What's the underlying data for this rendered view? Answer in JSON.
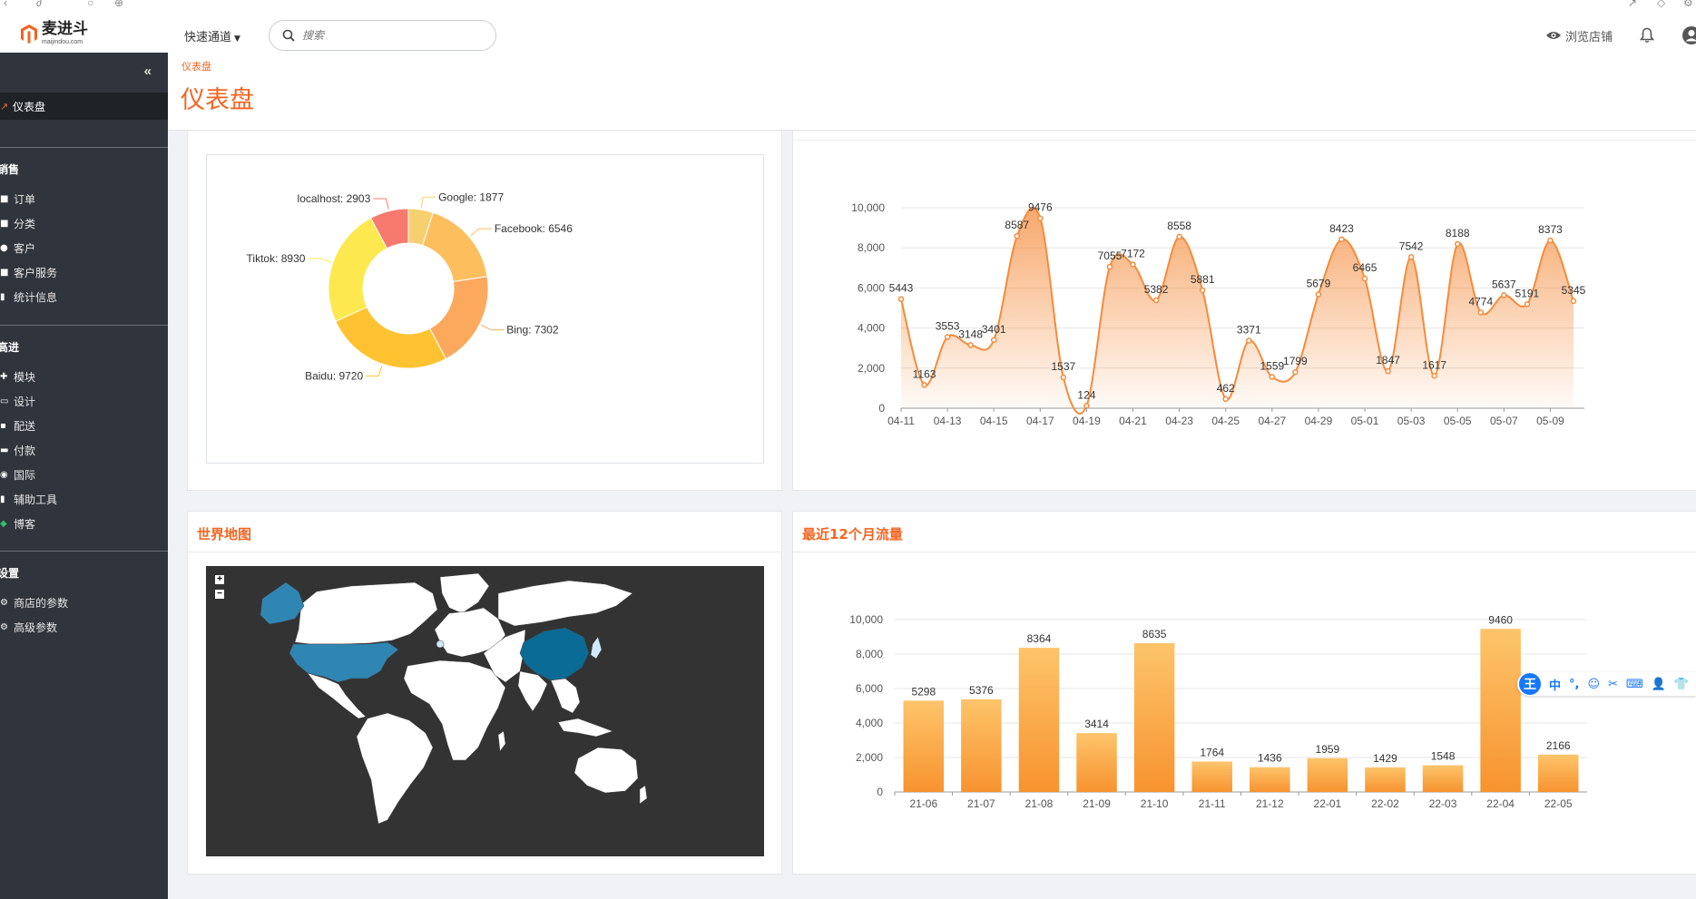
{
  "header": {
    "logo_title": "麦进斗",
    "logo_sub": "maijindou.com",
    "quick_nav": "快速通道",
    "search_placeholder": "搜索",
    "view_store": "浏览店铺"
  },
  "sidebar": {
    "active_item": "仪表盘",
    "sections": [
      {
        "title": "销售",
        "items": [
          "订单",
          "分类",
          "客户",
          "客户服务",
          "统计信息"
        ]
      },
      {
        "title": "高进",
        "items": [
          "模块",
          "设计",
          "配送",
          "付款",
          "国际",
          "辅助工具",
          "博客"
        ]
      },
      {
        "title": "设置",
        "items": [
          "商店的参数",
          "高级参数"
        ]
      }
    ]
  },
  "page": {
    "breadcrumb": "仪表盘",
    "title": "仪表盘"
  },
  "panels": {
    "world_map_title": "世界地图",
    "traffic_title": "最近12个月流量"
  },
  "ime": {
    "logo": "王",
    "items": [
      "中",
      "°,",
      "☺",
      "✂",
      "⌨",
      "👤",
      "👕"
    ]
  },
  "chart_data": [
    {
      "type": "pie",
      "labels": [
        "Google",
        "Facebook",
        "Bing",
        "Baidu",
        "Tiktok",
        "localhost"
      ],
      "values": [
        1877,
        6546,
        7302,
        9720,
        8930,
        2903
      ],
      "slice_labels": [
        "Google: 1877",
        "Facebook: 6546",
        "Bing: 7302",
        "Baidu: 9720",
        "Tiktok: 8930",
        "localhost: 2903"
      ],
      "colors": [
        "#f6d06f",
        "#fdbf5e",
        "#fca95e",
        "#ffc332",
        "#fde84f",
        "#f67a6e"
      ],
      "donut": true
    },
    {
      "type": "area",
      "x": [
        "04-11",
        "04-12",
        "04-13",
        "04-14",
        "04-15",
        "04-16",
        "04-17",
        "04-18",
        "04-19",
        "04-20",
        "04-21",
        "04-22",
        "04-23",
        "04-24",
        "04-25",
        "04-26",
        "04-27",
        "04-28",
        "04-29",
        "04-30",
        "05-01",
        "05-02",
        "05-03",
        "05-04",
        "05-05",
        "05-06",
        "05-07",
        "05-08",
        "05-09",
        "05-10"
      ],
      "values": [
        5443,
        1163,
        3553,
        3148,
        3401,
        8587,
        9476,
        1537,
        124,
        7055,
        7172,
        5382,
        8558,
        5881,
        462,
        3371,
        1559,
        1799,
        5679,
        8423,
        6465,
        1847,
        7542,
        1617,
        8188,
        4774,
        5637,
        5191,
        8373,
        5345
      ],
      "x_tick_labels": [
        "04-11",
        "04-13",
        "04-15",
        "04-17",
        "04-19",
        "04-21",
        "04-23",
        "04-25",
        "04-27",
        "04-29",
        "05-01",
        "05-03",
        "05-05",
        "05-07",
        "05-09"
      ],
      "y_tick_labels": [
        "0",
        "2,000",
        "4,000",
        "6,000",
        "8,000",
        "10,000"
      ],
      "ylim": [
        0,
        10000
      ],
      "color": "#f58b3b",
      "grid": true
    },
    {
      "type": "bar",
      "categories": [
        "21-06",
        "21-07",
        "21-08",
        "21-09",
        "21-10",
        "21-11",
        "21-12",
        "22-01",
        "22-02",
        "22-03",
        "22-04",
        "22-05"
      ],
      "values": [
        5298,
        5376,
        8364,
        3414,
        8635,
        1764,
        1436,
        1959,
        1429,
        1548,
        9460,
        2166
      ],
      "y_tick_labels": [
        "0",
        "2,000",
        "4,000",
        "6,000",
        "8,000",
        "10,000"
      ],
      "ylim": [
        0,
        10000
      ],
      "color": "#f9a33c",
      "grid": true
    }
  ]
}
